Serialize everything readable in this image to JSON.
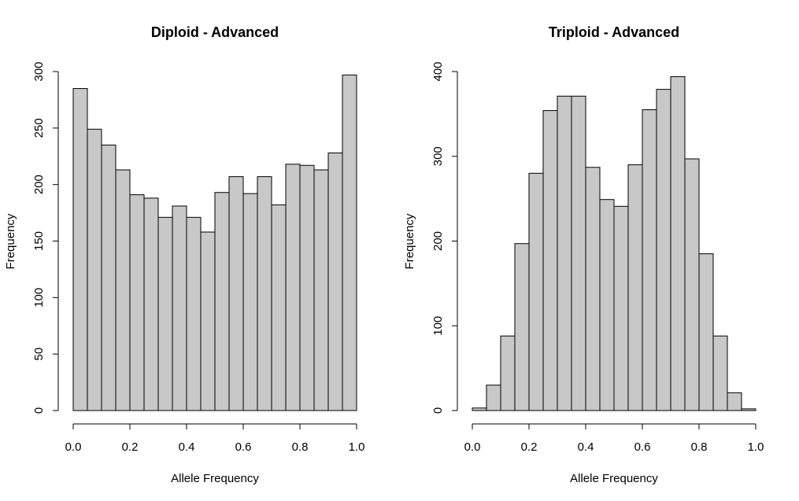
{
  "chart_data": [
    {
      "type": "bar",
      "title": "Diploid - Advanced",
      "xlabel": "Allele Frequency",
      "ylabel": "Frequency",
      "bin_edges": [
        0.0,
        0.05,
        0.1,
        0.15,
        0.2,
        0.25,
        0.3,
        0.35,
        0.4,
        0.45,
        0.5,
        0.55,
        0.6,
        0.65,
        0.7,
        0.75,
        0.8,
        0.85,
        0.9,
        0.95,
        1.0
      ],
      "values": [
        285,
        249,
        235,
        213,
        191,
        188,
        171,
        181,
        171,
        158,
        193,
        207,
        192,
        207,
        182,
        218,
        217,
        213,
        228,
        297
      ],
      "xlim": [
        0,
        1
      ],
      "ylim": [
        0,
        300
      ],
      "xticks": [
        0.0,
        0.2,
        0.4,
        0.6,
        0.8,
        1.0
      ],
      "xtick_labels": [
        "0.0",
        "0.2",
        "0.4",
        "0.6",
        "0.8",
        "1.0"
      ],
      "yticks": [
        0,
        50,
        100,
        150,
        200,
        250,
        300
      ],
      "ytick_labels": [
        "0",
        "50",
        "100",
        "150",
        "200",
        "250",
        "300"
      ],
      "bar_color": "#c8c8c8",
      "grid": false
    },
    {
      "type": "bar",
      "title": "Triploid - Advanced",
      "xlabel": "Allele Frequency",
      "ylabel": "Frequency",
      "bin_edges": [
        0.0,
        0.05,
        0.1,
        0.15,
        0.2,
        0.25,
        0.3,
        0.35,
        0.4,
        0.45,
        0.5,
        0.55,
        0.6,
        0.65,
        0.7,
        0.75,
        0.8,
        0.85,
        0.9,
        0.95,
        1.0
      ],
      "values": [
        3,
        30,
        88,
        197,
        280,
        354,
        371,
        371,
        287,
        249,
        241,
        290,
        355,
        379,
        394,
        297,
        185,
        88,
        21,
        2
      ],
      "xlim": [
        0,
        1
      ],
      "ylim": [
        0,
        400
      ],
      "xticks": [
        0.0,
        0.2,
        0.4,
        0.6,
        0.8,
        1.0
      ],
      "xtick_labels": [
        "0.0",
        "0.2",
        "0.4",
        "0.6",
        "0.8",
        "1.0"
      ],
      "yticks": [
        0,
        100,
        200,
        300,
        400
      ],
      "ytick_labels": [
        "0",
        "100",
        "200",
        "300",
        "400"
      ],
      "bar_color": "#c8c8c8",
      "grid": false
    }
  ]
}
